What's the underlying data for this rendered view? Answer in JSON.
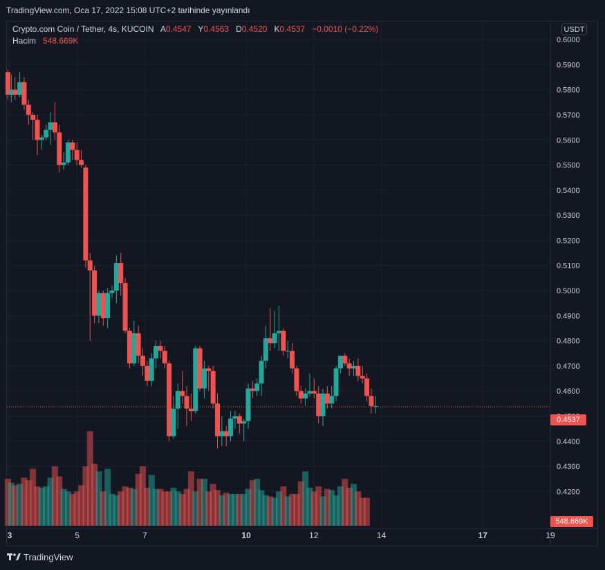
{
  "header": {
    "published": "TradingView.com, Oca 17, 2022 15:08 UTC+2 tarihinde yayınlandı"
  },
  "legend": {
    "symbol": "Crypto.com Coin / Tether, 4s, KUCOIN",
    "open_label": "A",
    "open": "0.4547",
    "high_label": "Y",
    "high": "0.4563",
    "low_label": "D",
    "low": "0.4520",
    "close_label": "K",
    "close": "0.4537",
    "change": "−0.0010 (−0.22%)",
    "volume_label": "Hacim",
    "volume": "548.669K"
  },
  "currency_button": "USDT",
  "price_tag": "0.4537",
  "volume_tag": "548.669K",
  "footer": {
    "brand": "TradingView"
  },
  "colors": {
    "up": "#26a69a",
    "down": "#ef5350",
    "background": "#131722",
    "grid": "#1e222d"
  },
  "chart_data": {
    "type": "candlestick",
    "y_axis": {
      "ticks": [
        "0.6000",
        "0.5900",
        "0.5800",
        "0.5700",
        "0.5600",
        "0.5500",
        "0.5400",
        "0.5300",
        "0.5200",
        "0.5100",
        "0.5000",
        "0.4900",
        "0.4800",
        "0.4700",
        "0.4600",
        "0.4500",
        "0.4400",
        "0.4300",
        "0.4200"
      ],
      "range": [
        0.4135,
        0.6003
      ]
    },
    "x_axis": {
      "labels": [
        "3",
        "5",
        "7",
        "10",
        "12",
        "14",
        "17",
        "19"
      ],
      "bold": [
        "3",
        "10",
        "17"
      ],
      "label_days": [
        3,
        5,
        7,
        10,
        12,
        14,
        17,
        19
      ]
    },
    "day_range": [
      2.92,
      19.0
    ],
    "last_price": 0.4537,
    "candles": [
      [
        2.95,
        0.587,
        0.588,
        0.576,
        0.578
      ],
      [
        3.05,
        0.578,
        0.586,
        0.575,
        0.58
      ],
      [
        3.16,
        0.58,
        0.585,
        0.576,
        0.578
      ],
      [
        3.3,
        0.578,
        0.587,
        0.577,
        0.583
      ],
      [
        3.43,
        0.583,
        0.585,
        0.572,
        0.574
      ],
      [
        3.56,
        0.574,
        0.576,
        0.566,
        0.57
      ],
      [
        3.69,
        0.57,
        0.571,
        0.56,
        0.568
      ],
      [
        3.82,
        0.568,
        0.57,
        0.554,
        0.56
      ],
      [
        3.95,
        0.56,
        0.562,
        0.556,
        0.561
      ],
      [
        4.08,
        0.561,
        0.566,
        0.56,
        0.564
      ],
      [
        4.21,
        0.564,
        0.571,
        0.558,
        0.567
      ],
      [
        4.34,
        0.567,
        0.575,
        0.56,
        0.563
      ],
      [
        4.47,
        0.563,
        0.566,
        0.547,
        0.55
      ],
      [
        4.6,
        0.55,
        0.555,
        0.548,
        0.551
      ],
      [
        4.73,
        0.551,
        0.56,
        0.55,
        0.559
      ],
      [
        4.86,
        0.559,
        0.56,
        0.552,
        0.556
      ],
      [
        4.99,
        0.556,
        0.559,
        0.55,
        0.552
      ],
      [
        5.12,
        0.552,
        0.556,
        0.549,
        0.55
      ],
      [
        5.25,
        0.549,
        0.55,
        0.509,
        0.512
      ],
      [
        5.38,
        0.512,
        0.515,
        0.48,
        0.508
      ],
      [
        5.51,
        0.508,
        0.51,
        0.487,
        0.49
      ],
      [
        5.64,
        0.49,
        0.5,
        0.487,
        0.499
      ],
      [
        5.77,
        0.499,
        0.5,
        0.486,
        0.489
      ],
      [
        5.9,
        0.489,
        0.501,
        0.485,
        0.499
      ],
      [
        6.03,
        0.499,
        0.502,
        0.497,
        0.5
      ],
      [
        6.16,
        0.5,
        0.514,
        0.495,
        0.511
      ],
      [
        6.29,
        0.511,
        0.515,
        0.498,
        0.503
      ],
      [
        6.42,
        0.503,
        0.505,
        0.483,
        0.484
      ],
      [
        6.55,
        0.484,
        0.485,
        0.469,
        0.471
      ],
      [
        6.68,
        0.471,
        0.488,
        0.47,
        0.483
      ],
      [
        6.81,
        0.483,
        0.486,
        0.471,
        0.474
      ],
      [
        6.94,
        0.474,
        0.477,
        0.466,
        0.47
      ],
      [
        7.07,
        0.47,
        0.472,
        0.462,
        0.464
      ],
      [
        7.2,
        0.464,
        0.475,
        0.462,
        0.473
      ],
      [
        7.33,
        0.473,
        0.48,
        0.469,
        0.478
      ],
      [
        7.46,
        0.478,
        0.48,
        0.473,
        0.476
      ],
      [
        7.59,
        0.476,
        0.478,
        0.469,
        0.471
      ],
      [
        7.72,
        0.471,
        0.472,
        0.44,
        0.442
      ],
      [
        7.85,
        0.442,
        0.458,
        0.441,
        0.453
      ],
      [
        7.98,
        0.453,
        0.463,
        0.445,
        0.46
      ],
      [
        8.11,
        0.46,
        0.468,
        0.455,
        0.458
      ],
      [
        8.24,
        0.458,
        0.462,
        0.446,
        0.453
      ],
      [
        8.37,
        0.453,
        0.459,
        0.448,
        0.452
      ],
      [
        8.5,
        0.452,
        0.478,
        0.451,
        0.477
      ],
      [
        8.63,
        0.477,
        0.478,
        0.46,
        0.461
      ],
      [
        8.76,
        0.461,
        0.472,
        0.457,
        0.469
      ],
      [
        8.89,
        0.469,
        0.47,
        0.46,
        0.468
      ],
      [
        9.02,
        0.468,
        0.47,
        0.453,
        0.455
      ],
      [
        9.15,
        0.455,
        0.459,
        0.437,
        0.442
      ],
      [
        9.28,
        0.442,
        0.45,
        0.438,
        0.444
      ],
      [
        9.41,
        0.444,
        0.446,
        0.438,
        0.442
      ],
      [
        9.54,
        0.442,
        0.452,
        0.44,
        0.449
      ],
      [
        9.67,
        0.449,
        0.452,
        0.445,
        0.45
      ],
      [
        9.8,
        0.45,
        0.451,
        0.443,
        0.447
      ],
      [
        9.93,
        0.447,
        0.449,
        0.44,
        0.448
      ],
      [
        10.06,
        0.448,
        0.463,
        0.445,
        0.461
      ],
      [
        10.19,
        0.461,
        0.464,
        0.457,
        0.46
      ],
      [
        10.32,
        0.46,
        0.465,
        0.458,
        0.463
      ],
      [
        10.45,
        0.463,
        0.474,
        0.458,
        0.472
      ],
      [
        10.58,
        0.472,
        0.486,
        0.469,
        0.481
      ],
      [
        10.71,
        0.481,
        0.493,
        0.476,
        0.479
      ],
      [
        10.84,
        0.479,
        0.492,
        0.477,
        0.483
      ],
      [
        10.97,
        0.483,
        0.494,
        0.476,
        0.484
      ],
      [
        11.1,
        0.484,
        0.485,
        0.474,
        0.476
      ],
      [
        11.23,
        0.476,
        0.48,
        0.473,
        0.476
      ],
      [
        11.36,
        0.476,
        0.479,
        0.467,
        0.469
      ],
      [
        11.49,
        0.469,
        0.47,
        0.458,
        0.46
      ],
      [
        11.62,
        0.46,
        0.462,
        0.455,
        0.457
      ],
      [
        11.75,
        0.457,
        0.461,
        0.454,
        0.459
      ],
      [
        11.88,
        0.459,
        0.467,
        0.458,
        0.46
      ],
      [
        12.01,
        0.46,
        0.465,
        0.457,
        0.459
      ],
      [
        12.14,
        0.459,
        0.462,
        0.447,
        0.45
      ],
      [
        12.27,
        0.45,
        0.461,
        0.446,
        0.459
      ],
      [
        12.4,
        0.459,
        0.462,
        0.453,
        0.455
      ],
      [
        12.53,
        0.455,
        0.462,
        0.453,
        0.458
      ],
      [
        12.66,
        0.458,
        0.47,
        0.456,
        0.469
      ],
      [
        12.79,
        0.469,
        0.474,
        0.467,
        0.474
      ],
      [
        12.92,
        0.474,
        0.475,
        0.47,
        0.471
      ],
      [
        13.05,
        0.471,
        0.473,
        0.466,
        0.469
      ],
      [
        13.18,
        0.469,
        0.472,
        0.466,
        0.47
      ],
      [
        13.31,
        0.47,
        0.473,
        0.464,
        0.466
      ],
      [
        13.44,
        0.466,
        0.47,
        0.463,
        0.465
      ],
      [
        13.57,
        0.465,
        0.467,
        0.456,
        0.458
      ],
      [
        13.7,
        0.458,
        0.461,
        0.451,
        0.454
      ],
      [
        13.83,
        0.454,
        0.458,
        0.451,
        0.454
      ]
    ],
    "volumes": [
      0.425,
      0.4235,
      0.4225,
      0.423,
      0.4255,
      0.4245,
      0.429,
      0.422,
      0.4215,
      0.422,
      0.4255,
      0.43,
      0.426,
      0.421,
      0.42,
      0.419,
      0.42,
      0.4225,
      0.43,
      0.444,
      0.431,
      0.428,
      0.42,
      0.429,
      0.419,
      0.4185,
      0.42,
      0.422,
      0.4215,
      0.421,
      0.427,
      0.43,
      0.4215,
      0.4265,
      0.421,
      0.421,
      0.42,
      0.42,
      0.4215,
      0.42,
      0.419,
      0.421,
      0.428,
      0.42,
      0.425,
      0.425,
      0.42,
      0.423,
      0.4205,
      0.4185,
      0.4195,
      0.419,
      0.419,
      0.419,
      0.419,
      0.421,
      0.4245,
      0.425,
      0.4205,
      0.4185,
      0.418,
      0.4175,
      0.42,
      0.422,
      0.418,
      0.419,
      0.419,
      0.424,
      0.428,
      0.4215,
      0.42,
      0.422,
      0.418,
      0.421,
      0.4205,
      0.4185,
      0.422,
      0.425,
      0.4215,
      0.423,
      0.42,
      0.4175,
      0.4175
    ]
  }
}
